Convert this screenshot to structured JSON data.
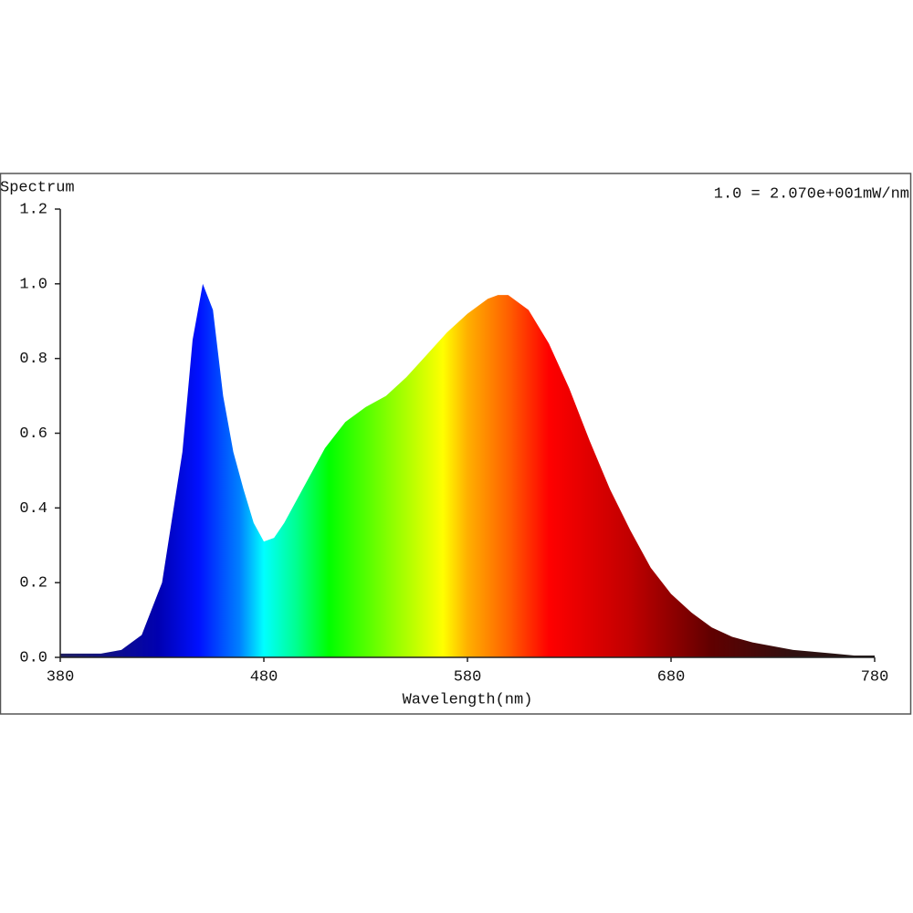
{
  "chart_data": {
    "type": "area",
    "y_axis_title": "Spectrum",
    "annotation": "1.0 = 2.070e+001mW/nm",
    "x_axis_title": "Wavelength(nm)",
    "x": [
      380,
      390,
      400,
      410,
      420,
      430,
      440,
      445,
      450,
      455,
      460,
      465,
      470,
      475,
      480,
      485,
      490,
      500,
      510,
      520,
      530,
      540,
      550,
      560,
      570,
      580,
      590,
      595,
      600,
      610,
      620,
      630,
      640,
      650,
      660,
      670,
      680,
      690,
      700,
      710,
      720,
      730,
      740,
      750,
      760,
      770,
      780
    ],
    "values": [
      0.01,
      0.01,
      0.01,
      0.02,
      0.06,
      0.2,
      0.55,
      0.85,
      1.0,
      0.93,
      0.7,
      0.55,
      0.45,
      0.36,
      0.31,
      0.32,
      0.36,
      0.46,
      0.56,
      0.63,
      0.67,
      0.7,
      0.75,
      0.81,
      0.87,
      0.92,
      0.96,
      0.97,
      0.97,
      0.93,
      0.84,
      0.72,
      0.58,
      0.45,
      0.34,
      0.24,
      0.17,
      0.12,
      0.08,
      0.055,
      0.04,
      0.03,
      0.02,
      0.015,
      0.01,
      0.005,
      0.005
    ],
    "xlim": [
      380,
      780
    ],
    "xticks": [
      380,
      480,
      580,
      680,
      780
    ],
    "ylim": [
      0,
      1.2
    ],
    "yticks": [
      {
        "value": 0,
        "label": "0.0"
      },
      0.2,
      0.4,
      0.6,
      0.8,
      {
        "value": 1,
        "label": "1.0"
      },
      1.2
    ]
  }
}
